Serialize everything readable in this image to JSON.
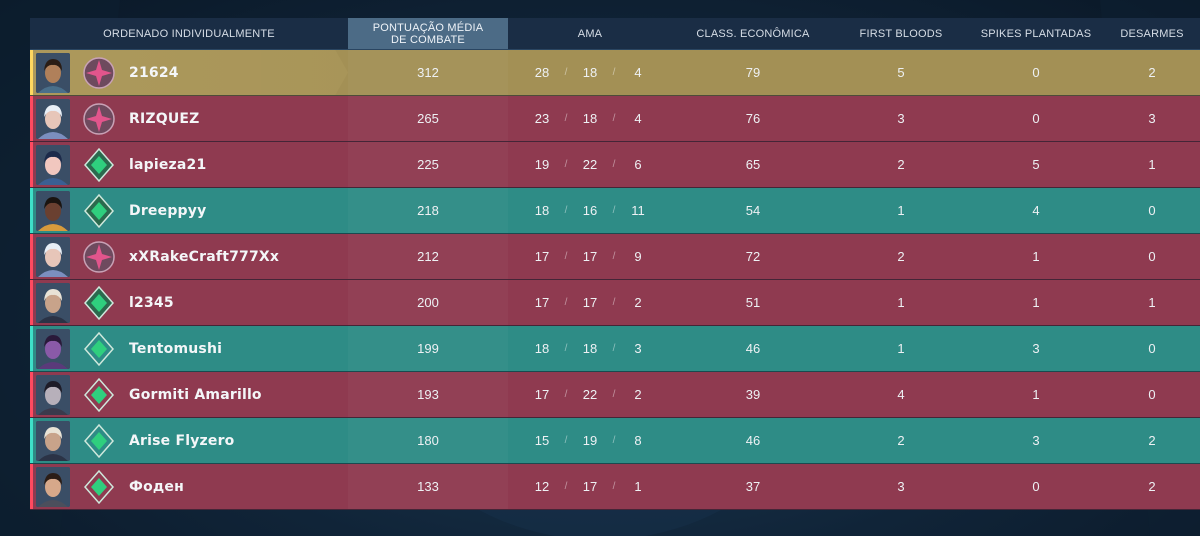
{
  "headers": {
    "name": "ORDENADO INDIVIDUALMENTE",
    "acs_line1": "PONTUAÇÃO MÉDIA",
    "acs_line2": "DE COMBATE",
    "kda": "AMA",
    "econ": "CLASS. ECONÔMICA",
    "first_bloods": "FIRST BLOODS",
    "plants": "SPIKES PLANTADAS",
    "defuses": "DESARMES"
  },
  "colors": {
    "red_team": "#8f3a50",
    "green_team": "#2e8c86",
    "highlight": "#a39055",
    "active_header": "#4c6b86"
  },
  "players": [
    {
      "name": "21624",
      "team": "gold",
      "rank": "pink",
      "acs": "312",
      "k": "28",
      "d": "18",
      "a": "4",
      "econ": "79",
      "fb": "5",
      "plants": "0",
      "defuses": "2",
      "skin": "#b0805a",
      "hair": "#2a1d15",
      "cloth": "#4a6f8a"
    },
    {
      "name": "RIZQUEZ",
      "team": "red",
      "rank": "pink",
      "acs": "265",
      "k": "23",
      "d": "18",
      "a": "4",
      "econ": "76",
      "fb": "3",
      "plants": "0",
      "defuses": "3",
      "skin": "#e7c6b9",
      "hair": "#e8eef6",
      "cloth": "#7b8fbf"
    },
    {
      "name": "lapieza21",
      "team": "red",
      "rank": "green",
      "acs": "225",
      "k": "19",
      "d": "22",
      "a": "6",
      "econ": "65",
      "fb": "2",
      "plants": "5",
      "defuses": "1",
      "skin": "#f1c7bf",
      "hair": "#1c2a4a",
      "cloth": "#3b5f93"
    },
    {
      "name": "Dreeppyy",
      "team": "green",
      "rank": "green",
      "acs": "218",
      "k": "18",
      "d": "16",
      "a": "11",
      "econ": "54",
      "fb": "1",
      "plants": "4",
      "defuses": "0",
      "skin": "#6a4030",
      "hair": "#1a1410",
      "cloth": "#d79a3c"
    },
    {
      "name": "xXRakeCraft777Xx",
      "team": "red",
      "rank": "pink",
      "acs": "212",
      "k": "17",
      "d": "17",
      "a": "9",
      "econ": "72",
      "fb": "2",
      "plants": "1",
      "defuses": "0",
      "skin": "#e7c6b9",
      "hair": "#e8eef6",
      "cloth": "#7b8fbf"
    },
    {
      "name": "l2345",
      "team": "red",
      "rank": "green",
      "acs": "200",
      "k": "17",
      "d": "17",
      "a": "2",
      "econ": "51",
      "fb": "1",
      "plants": "1",
      "defuses": "1",
      "skin": "#c8a38a",
      "hair": "#e9e3d6",
      "cloth": "#2b3346"
    },
    {
      "name": "Tentomushi",
      "team": "green",
      "rank": "green-outline",
      "acs": "199",
      "k": "18",
      "d": "18",
      "a": "3",
      "econ": "46",
      "fb": "1",
      "plants": "3",
      "defuses": "0",
      "skin": "#8a5aa8",
      "hair": "#2a1a3a",
      "cloth": "#5a3a7a"
    },
    {
      "name": "Gormiti Amarillo",
      "team": "red",
      "rank": "green-outline",
      "acs": "193",
      "k": "17",
      "d": "22",
      "a": "2",
      "econ": "39",
      "fb": "4",
      "plants": "1",
      "defuses": "0",
      "skin": "#b7b0ba",
      "hair": "#1e1c28",
      "cloth": "#3b3a4c"
    },
    {
      "name": "Arise Flyzero",
      "team": "green",
      "rank": "green-outline",
      "acs": "180",
      "k": "15",
      "d": "19",
      "a": "8",
      "econ": "46",
      "fb": "2",
      "plants": "3",
      "defuses": "2",
      "skin": "#c8a38a",
      "hair": "#e9e3d6",
      "cloth": "#2b3346"
    },
    {
      "name": "Фоден",
      "team": "red",
      "rank": "green-outline",
      "acs": "133",
      "k": "12",
      "d": "17",
      "a": "1",
      "econ": "37",
      "fb": "3",
      "plants": "0",
      "defuses": "2",
      "skin": "#d6a88a",
      "hair": "#2b1d16",
      "cloth": "#4b4f5c"
    }
  ]
}
